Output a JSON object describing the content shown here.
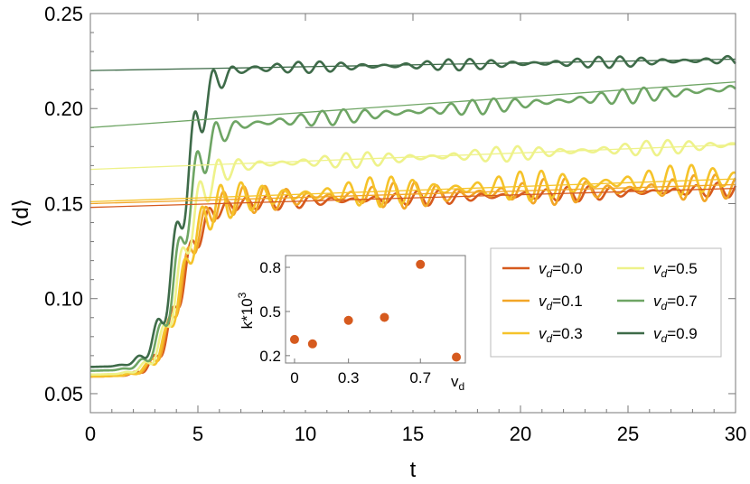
{
  "chart_data": [
    {
      "type": "line",
      "xlabel": "t",
      "ylabel": "⟨d⟩",
      "xlim": [
        0,
        30
      ],
      "ylim": [
        0.04,
        0.25
      ],
      "xticks": [
        0,
        5,
        10,
        15,
        20,
        25,
        30
      ],
      "yticks": [
        0.05,
        0.1,
        0.15,
        0.2,
        0.25
      ],
      "xtick_labels": [
        "0",
        "5",
        "10",
        "15",
        "20",
        "25",
        "30"
      ],
      "ytick_labels": [
        "0.05",
        "0.10",
        "0.15",
        "0.20",
        "0.25"
      ],
      "legend_position": "right",
      "series": [
        {
          "name_sym": "v",
          "name_sub": "d",
          "name_val": "=0.0",
          "vd": 0.0,
          "color": "#D65A1E",
          "start": 0.059,
          "plateau": 0.15,
          "slope": 0.00031,
          "amp": 0.004,
          "fit": [
            0.148,
            0.158
          ]
        },
        {
          "name_sym": "v",
          "name_sub": "d",
          "name_val": "=0.1",
          "vd": 0.1,
          "color": "#F2A627",
          "start": 0.059,
          "plateau": 0.152,
          "slope": 0.00028,
          "amp": 0.007,
          "fit": [
            0.15,
            0.16
          ]
        },
        {
          "name_sym": "v",
          "name_sub": "d",
          "name_val": "=0.3",
          "vd": 0.3,
          "color": "#F5C32A",
          "start": 0.059,
          "plateau": 0.153,
          "slope": 0.00044,
          "amp": 0.008,
          "fit": [
            0.151,
            0.163
          ]
        },
        {
          "name_sym": "v",
          "name_sub": "d",
          "name_val": "=0.5",
          "vd": 0.5,
          "color": "#EEF28A",
          "start": 0.06,
          "plateau": 0.17,
          "slope": 0.00046,
          "amp": 0.004,
          "fit": [
            0.168,
            0.181
          ]
        },
        {
          "name_sym": "v",
          "name_sub": "d",
          "name_val": "=0.7",
          "vd": 0.7,
          "color": "#6EA564",
          "start": 0.062,
          "plateau": 0.191,
          "slope": 0.00082,
          "amp": 0.004,
          "fit": [
            0.19,
            0.214
          ]
        },
        {
          "name_sym": "v",
          "name_sub": "d",
          "name_val": "=0.9",
          "vd": 0.9,
          "color": "#3E6B49",
          "start": 0.064,
          "plateau": 0.221,
          "slope": 0.00019,
          "amp": 0.003,
          "fit": [
            0.22,
            0.226
          ]
        }
      ],
      "reference_line": {
        "x": [
          10,
          30
        ],
        "y": 0.19,
        "color": "#888888"
      }
    },
    {
      "type": "scatter",
      "xlabel_sym": "v",
      "xlabel_sub": "d",
      "ylabel": "k*10",
      "ylabel_exp": "3",
      "xlim": [
        -0.05,
        0.95
      ],
      "ylim": [
        0.15,
        0.88
      ],
      "xticks": [
        0,
        0.3,
        0.7
      ],
      "xtick_labels": [
        "0",
        "0.3",
        "0.7"
      ],
      "yticks": [
        0.2,
        0.5,
        0.8
      ],
      "ytick_labels": [
        "0.2",
        "0.5",
        "0.8"
      ],
      "color": "#D65A1E",
      "x": [
        0.0,
        0.1,
        0.3,
        0.5,
        0.7,
        0.9
      ],
      "y": [
        0.31,
        0.28,
        0.44,
        0.46,
        0.82,
        0.19
      ]
    }
  ]
}
